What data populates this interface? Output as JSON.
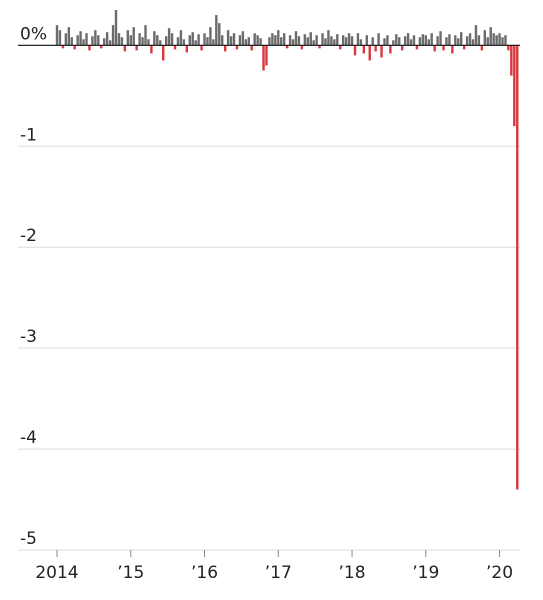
{
  "chart_data": {
    "type": "bar",
    "x": [
      2014,
      2014.04,
      2014.08,
      2014.12,
      2014.16,
      2014.2,
      2014.24,
      2014.28,
      2014.32,
      2014.36,
      2014.4,
      2014.44,
      2014.48,
      2014.52,
      2014.56,
      2014.6,
      2014.64,
      2014.68,
      2014.72,
      2014.76,
      2014.8,
      2014.84,
      2014.88,
      2014.92,
      2014.96,
      2015,
      2015.04,
      2015.08,
      2015.12,
      2015.16,
      2015.2,
      2015.24,
      2015.28,
      2015.32,
      2015.36,
      2015.4,
      2015.44,
      2015.48,
      2015.52,
      2015.56,
      2015.6,
      2015.64,
      2015.68,
      2015.72,
      2015.76,
      2015.8,
      2015.84,
      2015.88,
      2015.92,
      2015.96,
      2016,
      2016.04,
      2016.08,
      2016.12,
      2016.16,
      2016.2,
      2016.24,
      2016.28,
      2016.32,
      2016.36,
      2016.4,
      2016.44,
      2016.48,
      2016.52,
      2016.56,
      2016.6,
      2016.64,
      2016.68,
      2016.72,
      2016.76,
      2016.8,
      2016.84,
      2016.88,
      2016.92,
      2016.96,
      2017,
      2017.04,
      2017.08,
      2017.12,
      2017.16,
      2017.2,
      2017.24,
      2017.28,
      2017.32,
      2017.36,
      2017.4,
      2017.44,
      2017.48,
      2017.52,
      2017.56,
      2017.6,
      2017.64,
      2017.68,
      2017.72,
      2017.76,
      2017.8,
      2017.84,
      2017.88,
      2017.92,
      2017.96,
      2018,
      2018.04,
      2018.08,
      2018.12,
      2018.16,
      2018.2,
      2018.24,
      2018.28,
      2018.32,
      2018.36,
      2018.4,
      2018.44,
      2018.48,
      2018.52,
      2018.56,
      2018.6,
      2018.64,
      2018.68,
      2018.72,
      2018.76,
      2018.8,
      2018.84,
      2018.88,
      2018.92,
      2018.96,
      2019,
      2019.04,
      2019.08,
      2019.12,
      2019.16,
      2019.2,
      2019.24,
      2019.28,
      2019.32,
      2019.36,
      2019.4,
      2019.44,
      2019.48,
      2019.52,
      2019.56,
      2019.6,
      2019.64,
      2019.68,
      2019.72,
      2019.76,
      2019.8,
      2019.84,
      2019.88,
      2019.92,
      2019.96,
      2020,
      2020.04,
      2020.08,
      2020.12,
      2020.16,
      2020.2,
      2020.24
    ],
    "values": [
      0.2,
      0.15,
      -0.03,
      0.12,
      0.18,
      0.08,
      -0.04,
      0.1,
      0.14,
      0.06,
      0.12,
      -0.05,
      0.09,
      0.15,
      0.1,
      -0.03,
      0.07,
      0.13,
      0.05,
      0.2,
      0.35,
      0.12,
      0.08,
      -0.06,
      0.15,
      0.1,
      0.18,
      -0.05,
      0.12,
      0.08,
      0.2,
      0.06,
      -0.08,
      0.14,
      0.1,
      0.05,
      -0.15,
      0.09,
      0.17,
      0.12,
      -0.04,
      0.08,
      0.15,
      0.06,
      -0.07,
      0.1,
      0.13,
      0.05,
      0.11,
      -0.05,
      0.12,
      0.08,
      0.18,
      0.06,
      0.3,
      0.22,
      0.1,
      -0.06,
      0.15,
      0.09,
      0.12,
      -0.04,
      0.1,
      0.14,
      0.06,
      0.08,
      -0.05,
      0.12,
      0.1,
      0.07,
      -0.25,
      -0.2,
      0.08,
      0.12,
      0.1,
      0.15,
      0.08,
      0.12,
      -0.03,
      0.1,
      0.06,
      0.14,
      0.09,
      -0.04,
      0.11,
      0.08,
      0.13,
      0.05,
      0.1,
      -0.03,
      0.12,
      0.07,
      0.15,
      0.09,
      0.06,
      0.11,
      -0.04,
      0.1,
      0.08,
      0.12,
      0.09,
      -0.1,
      0.12,
      0.06,
      -0.08,
      0.1,
      -0.15,
      0.08,
      -0.06,
      0.12,
      -0.12,
      0.07,
      0.1,
      -0.08,
      0.05,
      0.11,
      0.08,
      -0.05,
      0.09,
      0.12,
      0.06,
      0.1,
      -0.04,
      0.08,
      0.11,
      0.1,
      0.06,
      0.12,
      -0.06,
      0.09,
      0.14,
      -0.05,
      0.08,
      0.11,
      -0.08,
      0.1,
      0.07,
      0.13,
      -0.04,
      0.09,
      0.12,
      0.06,
      0.2,
      0.1,
      -0.05,
      0.15,
      0.08,
      0.18,
      0.12,
      0.1,
      0.12,
      0.08,
      0.1,
      -0.05,
      -0.3,
      -0.8,
      -4.4
    ],
    "positive_color": "#6b6b6b",
    "negative_color": "#d9363e",
    "xlim": [
      2014,
      2020.25
    ],
    "xticks": [
      2014,
      {
        "value": 2015,
        "label": "’15"
      },
      {
        "value": 2016,
        "label": "’16"
      },
      {
        "value": 2017,
        "label": "’17"
      },
      {
        "value": 2018,
        "label": "’18"
      },
      {
        "value": 2019,
        "label": "’19"
      },
      {
        "value": 2020,
        "label": "’20"
      }
    ],
    "ylim": [
      -5,
      0.35
    ],
    "yticks": [
      {
        "value": 0,
        "label": "0%"
      },
      -1,
      -2,
      -3,
      -4,
      -5
    ],
    "grid": true
  }
}
